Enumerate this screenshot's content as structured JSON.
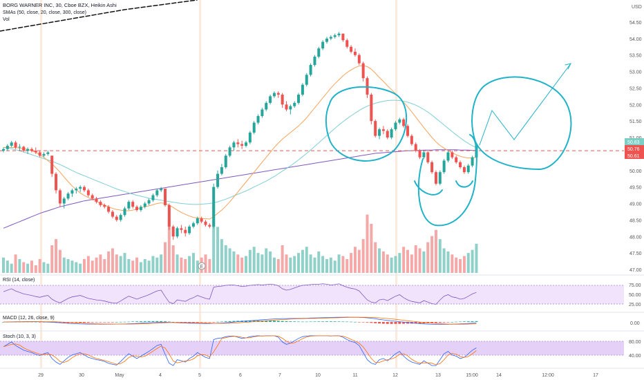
{
  "header": {
    "title": "BORG WARNER INC, 30, Cboe BZX, Heikin Ashi",
    "sma_legend": "SMAs (50, close, 20, close, 300, close)",
    "vol_label": "Vol"
  },
  "panes": {
    "rsi_label": "RSI (14, close)",
    "macd_label": "MACD (12, 26, close, 9)",
    "stoch_label": "Stoch (10, 3, 3)"
  },
  "currency": "USD",
  "price_axis": [
    "54.50",
    "54.00",
    "53.50",
    "53.00",
    "52.50",
    "52.00",
    "51.50",
    "51.00",
    "50.50",
    "50.00",
    "49.50",
    "49.00",
    "48.50",
    "48.00",
    "47.50",
    "47.00"
  ],
  "price_badges": [
    "50.83",
    "50.76",
    "50.61"
  ],
  "rsi_axis": [
    "75.00",
    "50.00",
    "25.00"
  ],
  "macd_axis": [
    "0.00"
  ],
  "stoch_axis": [
    "80.00",
    "40.00"
  ],
  "time_axis": [
    "29",
    "30",
    "May",
    "4",
    "5",
    "6",
    "7",
    "10",
    "11",
    "12",
    "13",
    "15:00",
    "14",
    "12:00",
    "17"
  ],
  "earnings_marker": "E",
  "colors": {
    "up": "#26a69a",
    "down": "#ef5350",
    "vol_up": "#8fd1c9",
    "vol_down": "#f4a9a8",
    "sma20": "#f7a35c",
    "sma50": "#7fcfd6",
    "sma300": "#7e57c2",
    "drawing": "#1fb2c8",
    "session_line": "#f7c59f",
    "rsi": "#7e57c2",
    "rsi_band": "#f0e3fb",
    "stoch_k": "#2962ff",
    "stoch_d": "#ff6d00",
    "stoch_band": "#e5d1f7",
    "hline": "#ef5350"
  },
  "chart_data": {
    "type": "candlestick",
    "title": "BORG WARNER INC, 30, Cboe BZX, Heikin Ashi",
    "ylim": [
      47.0,
      54.75
    ],
    "horizontal_line": 50.6,
    "candles": [
      [
        50.6,
        50.7,
        50.55,
        50.65
      ],
      [
        50.65,
        50.8,
        50.6,
        50.75
      ],
      [
        50.75,
        50.9,
        50.7,
        50.85
      ],
      [
        50.85,
        50.9,
        50.65,
        50.7
      ],
      [
        50.7,
        50.8,
        50.6,
        50.72
      ],
      [
        50.72,
        50.75,
        50.55,
        50.6
      ],
      [
        50.6,
        50.7,
        50.5,
        50.65
      ],
      [
        50.65,
        50.7,
        50.55,
        50.6
      ],
      [
        50.6,
        50.7,
        50.5,
        50.55
      ],
      [
        50.55,
        50.6,
        50.4,
        50.45
      ],
      [
        50.45,
        50.55,
        50.4,
        50.5
      ],
      [
        50.5,
        50.6,
        50.45,
        50.55
      ],
      [
        50.45,
        50.45,
        49.8,
        49.9
      ],
      [
        49.9,
        49.95,
        49.3,
        49.4
      ],
      [
        49.4,
        49.45,
        48.9,
        49.0
      ],
      [
        49.0,
        49.2,
        48.85,
        49.15
      ],
      [
        49.15,
        49.35,
        49.1,
        49.3
      ],
      [
        49.3,
        49.45,
        49.2,
        49.4
      ],
      [
        49.4,
        49.5,
        49.3,
        49.45
      ],
      [
        49.45,
        49.55,
        49.35,
        49.5
      ],
      [
        49.5,
        49.55,
        49.35,
        49.4
      ],
      [
        49.4,
        49.45,
        49.2,
        49.25
      ],
      [
        49.25,
        49.3,
        49.1,
        49.15
      ],
      [
        49.15,
        49.2,
        49.0,
        49.05
      ],
      [
        49.05,
        49.1,
        48.9,
        48.95
      ],
      [
        48.95,
        49.0,
        48.85,
        48.9
      ],
      [
        48.9,
        48.95,
        48.7,
        48.75
      ],
      [
        48.75,
        48.8,
        48.55,
        48.6
      ],
      [
        48.6,
        48.65,
        48.45,
        48.5
      ],
      [
        48.5,
        48.7,
        48.45,
        48.65
      ],
      [
        48.65,
        48.9,
        48.6,
        48.85
      ],
      [
        48.85,
        49.1,
        48.8,
        49.05
      ],
      [
        49.05,
        49.1,
        48.85,
        48.9
      ],
      [
        48.9,
        48.95,
        48.75,
        48.8
      ],
      [
        48.8,
        48.95,
        48.75,
        48.9
      ],
      [
        48.9,
        49.05,
        48.85,
        49.0
      ],
      [
        49.0,
        49.15,
        48.95,
        49.1
      ],
      [
        49.1,
        49.3,
        49.05,
        49.25
      ],
      [
        49.25,
        49.45,
        49.2,
        49.4
      ],
      [
        49.4,
        49.5,
        49.35,
        49.45
      ],
      [
        49.45,
        49.4,
        48.9,
        48.95
      ],
      [
        48.95,
        49.0,
        48.2,
        48.3
      ],
      [
        48.3,
        48.35,
        47.9,
        48.0
      ],
      [
        48.0,
        48.3,
        47.95,
        48.25
      ],
      [
        48.25,
        48.35,
        48.1,
        48.2
      ],
      [
        48.2,
        48.3,
        48.0,
        48.1
      ],
      [
        48.1,
        48.35,
        48.05,
        48.3
      ],
      [
        48.3,
        48.45,
        48.25,
        48.4
      ],
      [
        48.4,
        48.6,
        48.35,
        48.55
      ],
      [
        48.55,
        48.6,
        48.4,
        48.45
      ],
      [
        48.45,
        48.5,
        48.3,
        48.35
      ],
      [
        48.35,
        48.4,
        48.25,
        48.3
      ],
      [
        48.3,
        49.6,
        48.25,
        49.5
      ],
      [
        49.5,
        50.0,
        49.45,
        49.9
      ],
      [
        49.9,
        50.2,
        49.85,
        50.1
      ],
      [
        50.1,
        50.5,
        50.05,
        50.45
      ],
      [
        50.45,
        50.75,
        50.4,
        50.7
      ],
      [
        50.7,
        50.9,
        50.6,
        50.85
      ],
      [
        50.85,
        50.95,
        50.7,
        50.8
      ],
      [
        50.8,
        50.9,
        50.65,
        50.75
      ],
      [
        50.75,
        50.9,
        50.7,
        50.85
      ],
      [
        50.85,
        51.2,
        50.8,
        51.15
      ],
      [
        51.15,
        51.5,
        51.1,
        51.45
      ],
      [
        51.45,
        51.7,
        51.4,
        51.65
      ],
      [
        51.65,
        51.9,
        51.6,
        51.85
      ],
      [
        51.85,
        52.1,
        51.8,
        52.05
      ],
      [
        52.05,
        52.3,
        52.0,
        52.25
      ],
      [
        52.25,
        52.4,
        52.2,
        52.35
      ],
      [
        52.35,
        52.4,
        52.2,
        52.3
      ],
      [
        52.3,
        52.35,
        51.9,
        52.0
      ],
      [
        52.0,
        52.1,
        51.8,
        51.85
      ],
      [
        51.85,
        52.0,
        51.7,
        51.95
      ],
      [
        51.95,
        52.1,
        51.9,
        52.05
      ],
      [
        52.05,
        52.35,
        52.0,
        52.3
      ],
      [
        52.3,
        52.65,
        52.25,
        52.6
      ],
      [
        52.6,
        52.95,
        52.55,
        52.9
      ],
      [
        52.9,
        53.25,
        52.85,
        53.2
      ],
      [
        53.2,
        53.5,
        53.15,
        53.45
      ],
      [
        53.45,
        53.75,
        53.4,
        53.7
      ],
      [
        53.7,
        53.95,
        53.65,
        53.9
      ],
      [
        53.9,
        54.05,
        53.85,
        54.0
      ],
      [
        54.0,
        54.1,
        53.95,
        54.05
      ],
      [
        54.05,
        54.15,
        54.0,
        54.1
      ],
      [
        54.1,
        54.2,
        54.05,
        54.15
      ],
      [
        54.15,
        54.15,
        53.9,
        53.95
      ],
      [
        53.95,
        54.0,
        53.7,
        53.75
      ],
      [
        53.75,
        53.8,
        53.55,
        53.6
      ],
      [
        53.6,
        53.7,
        53.45,
        53.5
      ],
      [
        53.5,
        53.55,
        53.2,
        53.25
      ],
      [
        53.25,
        53.3,
        52.7,
        52.8
      ],
      [
        52.8,
        52.85,
        52.2,
        52.3
      ],
      [
        52.3,
        52.35,
        51.4,
        51.5
      ],
      [
        51.5,
        51.55,
        51.0,
        51.05
      ],
      [
        51.05,
        51.3,
        50.95,
        51.25
      ],
      [
        51.25,
        51.35,
        51.1,
        51.2
      ],
      [
        51.2,
        51.25,
        50.95,
        51.0
      ],
      [
        51.0,
        51.3,
        50.95,
        51.25
      ],
      [
        51.25,
        51.5,
        51.2,
        51.45
      ],
      [
        51.45,
        51.6,
        51.4,
        51.55
      ],
      [
        51.55,
        51.6,
        51.3,
        51.35
      ],
      [
        51.35,
        51.4,
        51.0,
        51.05
      ],
      [
        51.05,
        51.1,
        50.75,
        50.8
      ],
      [
        50.8,
        50.85,
        50.55,
        50.6
      ],
      [
        50.6,
        50.65,
        50.35,
        50.4
      ],
      [
        50.4,
        50.6,
        50.35,
        50.55
      ],
      [
        50.55,
        50.6,
        50.2,
        50.25
      ],
      [
        50.25,
        50.3,
        49.9,
        49.95
      ],
      [
        49.95,
        50.0,
        49.55,
        49.6
      ],
      [
        49.6,
        50.0,
        49.55,
        49.95
      ],
      [
        49.95,
        50.35,
        49.9,
        50.3
      ],
      [
        50.3,
        50.6,
        50.25,
        50.55
      ],
      [
        50.55,
        50.6,
        50.35,
        50.4
      ],
      [
        50.4,
        50.45,
        50.2,
        50.25
      ],
      [
        50.25,
        50.3,
        50.05,
        50.1
      ],
      [
        50.1,
        50.15,
        49.9,
        49.95
      ],
      [
        49.95,
        50.2,
        49.9,
        50.15
      ],
      [
        50.15,
        50.45,
        50.1,
        50.4
      ],
      [
        50.4,
        50.85,
        50.35,
        50.8
      ]
    ],
    "volume": [
      10,
      8,
      6,
      12,
      9,
      7,
      6,
      8,
      5,
      9,
      7,
      6,
      18,
      22,
      15,
      10,
      9,
      8,
      7,
      6,
      9,
      11,
      8,
      10,
      12,
      9,
      14,
      16,
      12,
      11,
      13,
      9,
      8,
      10,
      7,
      9,
      8,
      11,
      10,
      12,
      20,
      35,
      18,
      12,
      10,
      9,
      11,
      13,
      8,
      10,
      12,
      9,
      45,
      30,
      22,
      18,
      16,
      14,
      12,
      10,
      11,
      15,
      17,
      13,
      12,
      16,
      14,
      10,
      9,
      18,
      12,
      10,
      11,
      13,
      15,
      17,
      12,
      10,
      14,
      11,
      9,
      10,
      8,
      12,
      11,
      9,
      13,
      17,
      15,
      22,
      38,
      32,
      20,
      16,
      14,
      12,
      10,
      11,
      13,
      17,
      15,
      12,
      18,
      16,
      14,
      20,
      24,
      28,
      22,
      16,
      14,
      12,
      10,
      9,
      11,
      13,
      15,
      19
    ],
    "sma20": [
      50.7,
      50.7,
      50.7,
      50.69,
      50.68,
      50.66,
      50.64,
      50.6,
      50.55,
      50.48,
      50.4,
      50.3,
      50.2,
      50.08,
      49.95,
      49.8,
      49.66,
      49.53,
      49.42,
      49.32,
      49.24,
      49.18,
      49.12,
      49.06,
      49.0,
      48.95,
      48.9,
      48.85,
      48.82,
      48.8,
      48.78,
      48.78,
      48.8,
      48.83,
      48.87,
      48.9,
      48.93,
      48.96,
      49.0,
      49.02,
      49.0,
      48.95,
      48.88,
      48.8,
      48.73,
      48.67,
      48.62,
      48.58,
      48.56,
      48.55,
      48.54,
      48.53,
      48.6,
      48.7,
      48.8,
      48.92,
      49.05,
      49.2,
      49.35,
      49.5,
      49.65,
      49.8,
      49.95,
      50.1,
      50.25,
      50.4,
      50.55,
      50.7,
      50.83,
      50.95,
      51.05,
      51.15,
      51.25,
      51.35,
      51.47,
      51.6,
      51.75,
      51.9,
      52.05,
      52.2,
      52.35,
      52.5,
      52.63,
      52.75,
      52.87,
      52.97,
      53.05,
      53.12,
      53.17,
      53.18,
      53.15,
      53.07,
      52.95,
      52.82,
      52.7,
      52.57,
      52.45,
      52.33,
      52.2,
      52.07,
      51.93,
      51.78,
      51.62,
      51.46,
      51.3,
      51.15,
      51.0,
      50.87,
      50.76,
      50.68,
      50.6,
      50.54,
      50.48,
      50.43,
      50.4,
      50.38,
      50.38,
      50.4
    ],
    "sma50": [
      50.7,
      50.68,
      50.66,
      50.63,
      50.6,
      50.56,
      50.52,
      50.48,
      50.44,
      50.4,
      50.36,
      50.32,
      50.28,
      50.23,
      50.18,
      50.12,
      50.06,
      50.0,
      49.94,
      49.89,
      49.84,
      49.79,
      49.74,
      49.69,
      49.64,
      49.59,
      49.54,
      49.49,
      49.44,
      49.4,
      49.36,
      49.32,
      49.28,
      49.25,
      49.22,
      49.19,
      49.16,
      49.14,
      49.12,
      49.1,
      49.08,
      49.06,
      49.04,
      49.02,
      49.0,
      48.99,
      48.98,
      48.97,
      48.97,
      48.98,
      48.99,
      49.0,
      49.02,
      49.05,
      49.09,
      49.13,
      49.18,
      49.23,
      49.28,
      49.33,
      49.38,
      49.44,
      49.5,
      49.56,
      49.62,
      49.68,
      49.75,
      49.82,
      49.9,
      49.98,
      50.06,
      50.14,
      50.23,
      50.32,
      50.42,
      50.52,
      50.62,
      50.73,
      50.84,
      50.95,
      51.06,
      51.17,
      51.28,
      51.38,
      51.48,
      51.57,
      51.66,
      51.74,
      51.82,
      51.89,
      51.95,
      52.0,
      52.04,
      52.07,
      52.1,
      52.12,
      52.13,
      52.13,
      52.12,
      52.1,
      52.07,
      52.03,
      51.98,
      51.92,
      51.85,
      51.77,
      51.68,
      51.58,
      51.48,
      51.38,
      51.28,
      51.18,
      51.08,
      50.99,
      50.9,
      50.82,
      50.75,
      50.7
    ],
    "sma300": [
      48.25,
      48.3,
      48.35,
      48.4,
      48.45,
      48.5,
      48.55,
      48.6,
      48.65,
      48.7,
      48.74,
      48.78,
      48.82,
      48.86,
      48.9,
      48.93,
      48.96,
      48.99,
      49.02,
      49.05,
      49.08,
      49.1,
      49.12,
      49.14,
      49.16,
      49.18,
      49.2,
      49.22,
      49.24,
      49.26,
      49.28,
      49.3,
      49.32,
      49.34,
      49.36,
      49.38,
      49.4,
      49.42,
      49.44,
      49.46,
      49.48,
      49.5,
      49.52,
      49.54,
      49.56,
      49.58,
      49.6,
      49.62,
      49.64,
      49.66,
      49.68,
      49.7,
      49.72,
      49.74,
      49.76,
      49.78,
      49.8,
      49.82,
      49.84,
      49.86,
      49.88,
      49.9,
      49.92,
      49.94,
      49.96,
      49.98,
      50.0,
      50.02,
      50.04,
      50.06,
      50.08,
      50.1,
      50.12,
      50.14,
      50.16,
      50.18,
      50.2,
      50.22,
      50.24,
      50.26,
      50.28,
      50.3,
      50.32,
      50.34,
      50.36,
      50.38,
      50.4,
      50.42,
      50.44,
      50.46,
      50.48,
      50.5,
      50.52,
      50.53,
      50.54,
      50.55,
      50.56,
      50.57,
      50.58,
      50.59,
      50.6,
      50.6,
      50.61,
      50.61,
      50.62,
      50.62,
      50.62,
      50.63,
      50.63,
      50.63,
      50.63,
      50.63,
      50.63,
      50.62,
      50.62,
      50.62,
      50.61,
      50.61
    ],
    "rsi": [
      58,
      62,
      66,
      60,
      56,
      52,
      50,
      48,
      45,
      43,
      46,
      48,
      38,
      32,
      28,
      34,
      40,
      44,
      46,
      48,
      44,
      40,
      38,
      36,
      35,
      33,
      30,
      28,
      27,
      33,
      40,
      46,
      42,
      38,
      42,
      46,
      50,
      55,
      60,
      62,
      45,
      30,
      26,
      36,
      34,
      32,
      38,
      42,
      48,
      44,
      40,
      38,
      70,
      72,
      73,
      75,
      76,
      76,
      74,
      72,
      73,
      75,
      76,
      77,
      76,
      77,
      78,
      77,
      74,
      66,
      62,
      64,
      68,
      72,
      75,
      76,
      77,
      78,
      78,
      79,
      78,
      76,
      77,
      79,
      74,
      70,
      67,
      65,
      60,
      48,
      36,
      30,
      28,
      36,
      38,
      34,
      40,
      46,
      50,
      42,
      36,
      32,
      30,
      28,
      34,
      30,
      26,
      24,
      36,
      46,
      50,
      44,
      42,
      38,
      40,
      46,
      52,
      56
    ]
  }
}
